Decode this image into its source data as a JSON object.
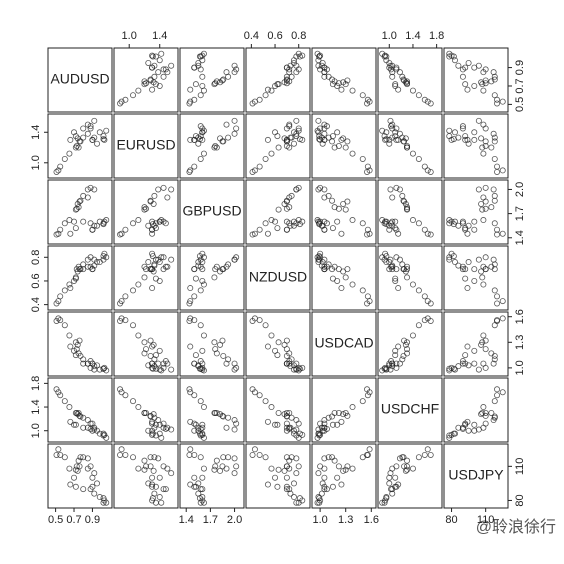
{
  "chart_data": {
    "type": "scatter_matrix",
    "point_color": "#222222",
    "variables": [
      {
        "name": "AUDUSD",
        "lim": [
          0.45,
          1.08
        ],
        "ticks": [
          0.5,
          0.7,
          0.9
        ],
        "values": [
          0.51,
          0.53,
          0.55,
          0.6,
          0.65,
          0.72,
          0.76,
          0.74,
          0.73,
          0.75,
          0.77,
          0.8,
          0.85,
          0.88,
          0.92,
          0.85,
          0.7,
          0.66,
          0.72,
          0.8,
          0.88,
          0.9,
          0.92,
          0.98,
          1.05,
          1.02,
          1.03,
          1.02,
          0.95,
          0.9
        ]
      },
      {
        "name": "EURUSD",
        "lim": [
          0.84,
          1.6
        ],
        "ticks": [
          {
            "value": 1,
            "label": "1.0"
          },
          1.4
        ],
        "values": [
          0.88,
          0.9,
          0.95,
          1.05,
          1.12,
          1.2,
          1.28,
          1.32,
          1.22,
          1.2,
          1.28,
          1.33,
          1.38,
          1.45,
          1.55,
          1.5,
          1.4,
          1.3,
          1.35,
          1.45,
          1.48,
          1.3,
          1.33,
          1.4,
          1.42,
          1.35,
          1.3,
          1.31,
          1.25,
          1.3
        ]
      },
      {
        "name": "GBPUSD",
        "lim": [
          1.36,
          2.08
        ],
        "ticks": [
          1.4,
          1.7,
          {
            "value": 2,
            "label": "2.0"
          }
        ],
        "values": [
          1.44,
          1.45,
          1.5,
          1.58,
          1.62,
          1.75,
          1.85,
          1.82,
          1.76,
          1.78,
          1.86,
          1.92,
          2.0,
          2.02,
          2.0,
          1.9,
          1.6,
          1.45,
          1.52,
          1.6,
          1.58,
          1.5,
          1.55,
          1.6,
          1.62,
          1.58,
          1.6,
          1.57,
          1.55,
          1.5
        ]
      },
      {
        "name": "NZDUSD",
        "lim": [
          0.38,
          0.87
        ],
        "ticks": [
          0.4,
          0.6,
          0.8
        ],
        "values": [
          0.41,
          0.43,
          0.47,
          0.52,
          0.57,
          0.63,
          0.7,
          0.68,
          0.7,
          0.72,
          0.7,
          0.74,
          0.78,
          0.8,
          0.78,
          0.72,
          0.6,
          0.54,
          0.62,
          0.7,
          0.72,
          0.7,
          0.73,
          0.76,
          0.8,
          0.78,
          0.83,
          0.81,
          0.76,
          0.7
        ]
      },
      {
        "name": "USDCAD",
        "lim": [
          0.94,
          1.62
        ],
        "ticks": [
          {
            "value": 1,
            "label": "1.0"
          },
          1.3,
          1.6
        ],
        "values": [
          1.55,
          1.58,
          1.56,
          1.5,
          1.38,
          1.3,
          1.32,
          1.27,
          1.22,
          1.17,
          1.14,
          1.1,
          1.05,
          1.0,
          0.98,
          1.05,
          1.2,
          1.25,
          1.15,
          1.05,
          1.08,
          1.05,
          1.02,
          0.98,
          0.97,
          0.99,
          1.0,
          0.99,
          1.03,
          1.05
        ]
      },
      {
        "name": "USDCHF",
        "lim": [
          0.86,
          1.84
        ],
        "ticks": [
          {
            "value": 1,
            "label": "1.0"
          },
          1.4,
          1.8
        ],
        "values": [
          1.7,
          1.65,
          1.6,
          1.5,
          1.4,
          1.3,
          1.25,
          1.28,
          1.3,
          1.3,
          1.24,
          1.22,
          1.18,
          1.12,
          1.02,
          1.05,
          1.1,
          1.15,
          1.1,
          1.05,
          1.03,
          1.12,
          1.05,
          0.95,
          0.88,
          0.92,
          0.93,
          0.95,
          1.0,
          1.0
        ]
      },
      {
        "name": "USDJPY",
        "lim": [
          76,
          127
        ],
        "ticks": [
          80,
          110
        ],
        "values": [
          120,
          125,
          120,
          118,
          108,
          107,
          110,
          106,
          110,
          115,
          118,
          118,
          117,
          110,
          104,
          108,
          100,
          94,
          92,
          90,
          90,
          92,
          86,
          83,
          78,
          78,
          80,
          82,
          95,
          100
        ]
      }
    ]
  },
  "watermark": "@聆浪徐行"
}
